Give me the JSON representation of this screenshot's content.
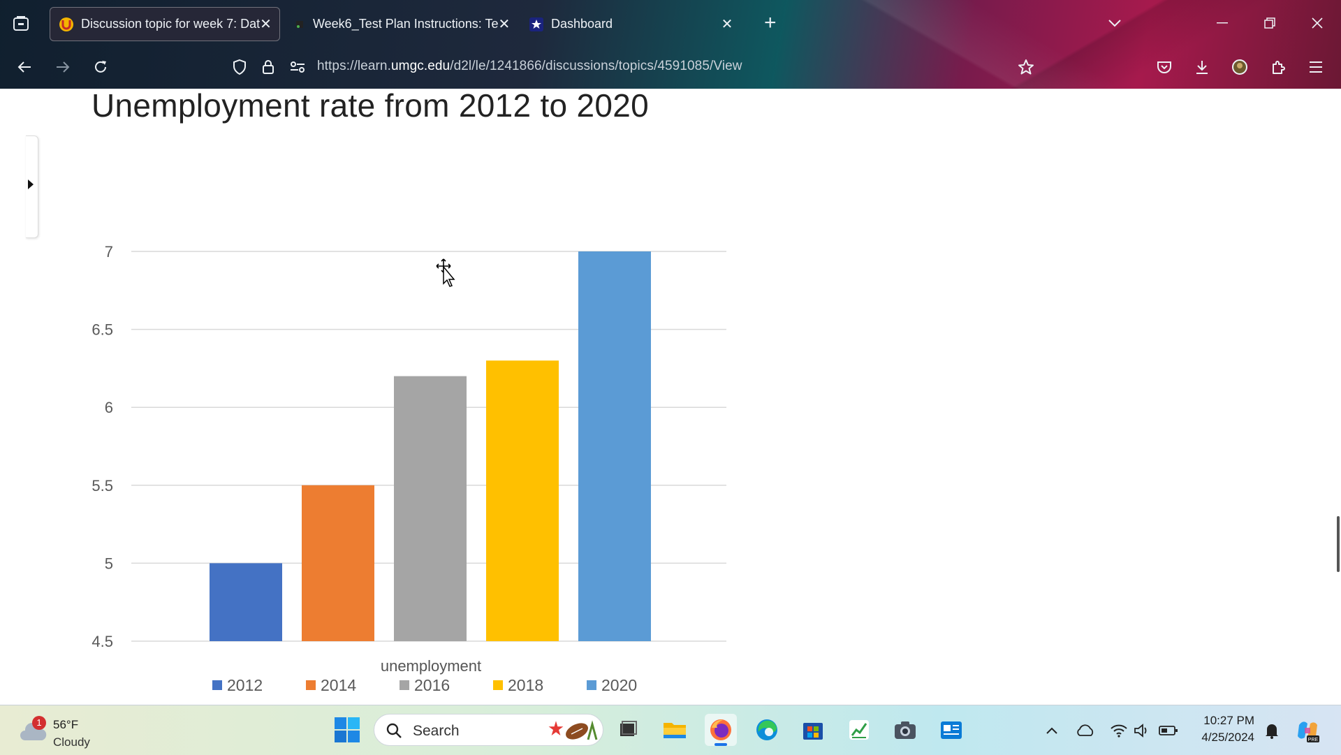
{
  "browser": {
    "tabs": [
      {
        "title": "Discussion topic for week 7: Dat",
        "favicon": "umgc-logo-icon",
        "active": true
      },
      {
        "title": "Week6_Test Plan Instructions: Te",
        "favicon": "dark-page-icon",
        "active": false
      },
      {
        "title": "Dashboard",
        "favicon": "star-icon",
        "active": false
      }
    ],
    "url_prefix": "https://learn.",
    "url_domain": "umgc.edu",
    "url_path": "/d2l/le/1241866/discussions/topics/4591085/View"
  },
  "page": {
    "chart_title": "Unemployment rate from 2012 to 2020"
  },
  "chart_data": {
    "type": "bar",
    "title": "Unemployment rate from 2012 to 2020",
    "xlabel": "unemployment",
    "ylabel": "",
    "ylim": [
      4.5,
      7
    ],
    "yticks": [
      "4.5",
      "5",
      "5.5",
      "6",
      "6.5",
      "7"
    ],
    "categories": [
      "unemployment"
    ],
    "series": [
      {
        "name": "2012",
        "values": [
          5.0
        ],
        "color": "#4472C4"
      },
      {
        "name": "2014",
        "values": [
          5.5
        ],
        "color": "#ED7D31"
      },
      {
        "name": "2016",
        "values": [
          6.2
        ],
        "color": "#A5A5A5"
      },
      {
        "name": "2018",
        "values": [
          6.3
        ],
        "color": "#FFC000"
      },
      {
        "name": "2020",
        "values": [
          7.0
        ],
        "color": "#5B9BD5"
      }
    ],
    "grid": true,
    "legend": "bottom"
  },
  "taskbar": {
    "weather_badge": "1",
    "weather_temp": "56°F",
    "weather_condition": "Cloudy",
    "search_placeholder": "Search",
    "apps": [
      "task-view-icon",
      "file-explorer-icon",
      "firefox-icon",
      "edge-icon",
      "microsoft-store-icon",
      "stock-chart-app-icon",
      "camera-icon",
      "news-app-icon"
    ],
    "time": "10:27 PM",
    "date": "4/25/2024"
  }
}
